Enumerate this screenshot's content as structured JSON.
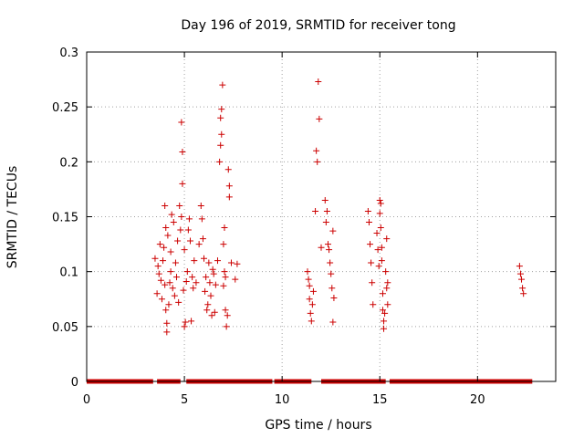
{
  "chart_data": {
    "type": "scatter",
    "title": "Day 196 of 2019, SRMTID for receiver tong",
    "xlabel": "GPS time / hours",
    "ylabel": "SRMTID / TECUs",
    "xlim": [
      0,
      24
    ],
    "ylim": [
      0,
      0.3
    ],
    "x_ticks": [
      0,
      5,
      10,
      15,
      20
    ],
    "x_tick_labels": [
      "0",
      "5",
      "10",
      "15",
      "20"
    ],
    "y_ticks": [
      0,
      0.05,
      0.1,
      0.15,
      0.2,
      0.25,
      0.3
    ],
    "y_tick_labels": [
      "0",
      "0.05",
      "0.1",
      "0.15",
      "0.2",
      "0.25",
      "0.3"
    ],
    "grid": true,
    "marker": "+",
    "color": "#cc0000",
    "series": [
      {
        "name": "SRMTID",
        "points": [
          [
            3.5,
            0.112
          ],
          [
            3.6,
            0.08
          ],
          [
            3.65,
            0.105
          ],
          [
            3.7,
            0.098
          ],
          [
            3.75,
            0.125
          ],
          [
            3.8,
            0.092
          ],
          [
            3.85,
            0.075
          ],
          [
            3.9,
            0.11
          ],
          [
            3.95,
            0.122
          ],
          [
            4.0,
            0.088
          ],
          [
            4.0,
            0.16
          ],
          [
            4.05,
            0.14
          ],
          [
            4.05,
            0.065
          ],
          [
            4.1,
            0.053
          ],
          [
            4.1,
            0.045
          ],
          [
            4.15,
            0.133
          ],
          [
            4.2,
            0.07
          ],
          [
            4.25,
            0.09
          ],
          [
            4.3,
            0.118
          ],
          [
            4.3,
            0.1
          ],
          [
            4.35,
            0.152
          ],
          [
            4.4,
            0.085
          ],
          [
            4.45,
            0.145
          ],
          [
            4.5,
            0.078
          ],
          [
            4.55,
            0.108
          ],
          [
            4.6,
            0.095
          ],
          [
            4.65,
            0.128
          ],
          [
            4.7,
            0.072
          ],
          [
            4.75,
            0.16
          ],
          [
            4.8,
            0.138
          ],
          [
            4.85,
            0.236
          ],
          [
            4.85,
            0.15
          ],
          [
            4.9,
            0.18
          ],
          [
            4.9,
            0.209
          ],
          [
            4.95,
            0.083
          ],
          [
            5.0,
            0.12
          ],
          [
            5.0,
            0.05
          ],
          [
            5.05,
            0.054
          ],
          [
            5.1,
            0.091
          ],
          [
            5.15,
            0.1
          ],
          [
            5.2,
            0.138
          ],
          [
            5.25,
            0.148
          ],
          [
            5.3,
            0.128
          ],
          [
            5.35,
            0.055
          ],
          [
            5.4,
            0.095
          ],
          [
            5.45,
            0.085
          ],
          [
            5.5,
            0.11
          ],
          [
            5.6,
            0.09
          ],
          [
            5.75,
            0.125
          ],
          [
            5.85,
            0.16
          ],
          [
            5.9,
            0.148
          ],
          [
            5.95,
            0.13
          ],
          [
            6.0,
            0.112
          ],
          [
            6.05,
            0.082
          ],
          [
            6.1,
            0.095
          ],
          [
            6.15,
            0.065
          ],
          [
            6.2,
            0.07
          ],
          [
            6.25,
            0.108
          ],
          [
            6.3,
            0.09
          ],
          [
            6.35,
            0.078
          ],
          [
            6.4,
            0.06
          ],
          [
            6.45,
            0.102
          ],
          [
            6.5,
            0.098
          ],
          [
            6.55,
            0.063
          ],
          [
            6.6,
            0.088
          ],
          [
            6.7,
            0.11
          ],
          [
            6.8,
            0.2
          ],
          [
            6.85,
            0.215
          ],
          [
            6.85,
            0.24
          ],
          [
            6.9,
            0.248
          ],
          [
            6.9,
            0.225
          ],
          [
            6.95,
            0.27
          ],
          [
            7.0,
            0.125
          ],
          [
            7.0,
            0.087
          ],
          [
            7.05,
            0.14
          ],
          [
            7.05,
            0.1
          ],
          [
            7.1,
            0.095
          ],
          [
            7.1,
            0.065
          ],
          [
            7.15,
            0.05
          ],
          [
            7.2,
            0.06
          ],
          [
            7.25,
            0.193
          ],
          [
            7.3,
            0.178
          ],
          [
            7.3,
            0.168
          ],
          [
            7.4,
            0.108
          ],
          [
            7.6,
            0.093
          ],
          [
            7.7,
            0.107
          ],
          [
            11.3,
            0.1
          ],
          [
            11.35,
            0.093
          ],
          [
            11.4,
            0.087
          ],
          [
            11.4,
            0.075
          ],
          [
            11.45,
            0.062
          ],
          [
            11.5,
            0.055
          ],
          [
            11.55,
            0.07
          ],
          [
            11.6,
            0.082
          ],
          [
            11.7,
            0.155
          ],
          [
            11.75,
            0.21
          ],
          [
            11.8,
            0.2
          ],
          [
            11.85,
            0.273
          ],
          [
            11.9,
            0.239
          ],
          [
            12.0,
            0.122
          ],
          [
            12.2,
            0.165
          ],
          [
            12.25,
            0.145
          ],
          [
            12.3,
            0.155
          ],
          [
            12.35,
            0.125
          ],
          [
            12.4,
            0.12
          ],
          [
            12.45,
            0.108
          ],
          [
            12.5,
            0.098
          ],
          [
            12.55,
            0.085
          ],
          [
            12.6,
            0.137
          ],
          [
            12.6,
            0.054
          ],
          [
            12.65,
            0.076
          ],
          [
            14.4,
            0.155
          ],
          [
            14.45,
            0.145
          ],
          [
            14.5,
            0.125
          ],
          [
            14.55,
            0.108
          ],
          [
            14.6,
            0.09
          ],
          [
            14.65,
            0.07
          ],
          [
            14.85,
            0.135
          ],
          [
            14.9,
            0.12
          ],
          [
            14.95,
            0.105
          ],
          [
            15.0,
            0.165
          ],
          [
            15.0,
            0.153
          ],
          [
            15.05,
            0.162
          ],
          [
            15.05,
            0.14
          ],
          [
            15.1,
            0.122
          ],
          [
            15.1,
            0.11
          ],
          [
            15.15,
            0.08
          ],
          [
            15.15,
            0.065
          ],
          [
            15.2,
            0.055
          ],
          [
            15.2,
            0.048
          ],
          [
            15.25,
            0.062
          ],
          [
            15.3,
            0.1
          ],
          [
            15.35,
            0.13
          ],
          [
            15.35,
            0.085
          ],
          [
            15.4,
            0.09
          ],
          [
            15.4,
            0.07
          ],
          [
            22.15,
            0.105
          ],
          [
            22.2,
            0.098
          ],
          [
            22.25,
            0.093
          ],
          [
            22.3,
            0.085
          ],
          [
            22.35,
            0.08
          ]
        ],
        "zero_ranges": [
          [
            0.0,
            3.4
          ],
          [
            3.6,
            4.8
          ],
          [
            5.1,
            9.5
          ],
          [
            9.6,
            11.5
          ],
          [
            12.0,
            15.3
          ],
          [
            15.5,
            22.8
          ]
        ]
      }
    ]
  }
}
